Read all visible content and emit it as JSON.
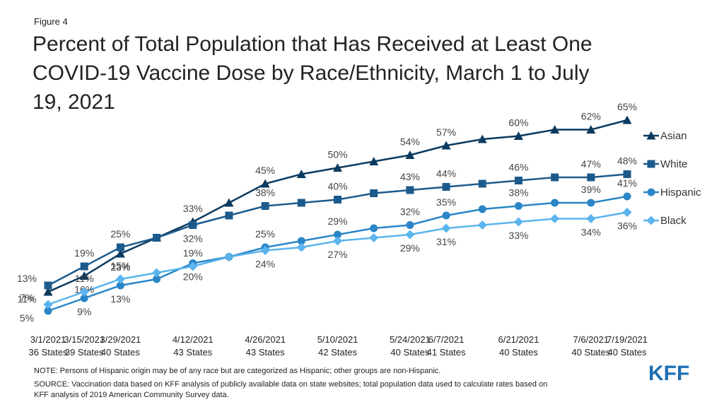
{
  "chart_data": {
    "type": "line",
    "figure_label": "Figure 4",
    "title": [
      "Percent of Total Population that Has Received at Least One",
      "COVID-19 Vaccine Dose by Race/Ethnicity, March 1 to July",
      "19, 2021"
    ],
    "categories": [
      "3/1/2021",
      "3/15/2021",
      "3/29/2021",
      null,
      "4/12/2021",
      null,
      "4/26/2021",
      null,
      "5/10/2021",
      null,
      "5/24/2021",
      "6/7/2021",
      null,
      "6/21/2021",
      null,
      "7/6/2021",
      "7/19/2021"
    ],
    "category_notes": [
      "36 States",
      "39 States",
      "40 States",
      null,
      "43 States",
      null,
      "43 States",
      null,
      "42 States",
      null,
      "40 States",
      "41 States",
      null,
      "40 States",
      null,
      "40 States",
      "40 States"
    ],
    "ylim": [
      0,
      70
    ],
    "series": [
      {
        "name": "Asian",
        "color": "#0b3a5f",
        "marker": "triangle",
        "values": [
          11,
          16,
          23,
          28,
          33,
          39,
          45,
          48,
          50,
          52,
          54,
          57,
          59,
          60,
          62,
          62,
          65
        ],
        "value_labels": [
          "11%",
          "16%",
          "23%",
          null,
          "33%",
          null,
          "45%",
          null,
          "50%",
          null,
          "54%",
          "57%",
          null,
          "60%",
          null,
          "62%",
          "65%"
        ]
      },
      {
        "name": "White",
        "color": "#1c5a8c",
        "marker": "square",
        "values": [
          13,
          19,
          25,
          28,
          32,
          35,
          38,
          39,
          40,
          42,
          43,
          44,
          45,
          46,
          47,
          47,
          48
        ],
        "value_labels": [
          "13%",
          "19%",
          "25%",
          null,
          "32%",
          null,
          "38%",
          null,
          "40%",
          null,
          "43%",
          "44%",
          null,
          "46%",
          null,
          "47%",
          "48%"
        ]
      },
      {
        "name": "Hispanic",
        "color": "#2a86c6",
        "marker": "circle",
        "values": [
          5,
          9,
          13,
          15,
          20,
          22,
          25,
          27,
          29,
          31,
          32,
          35,
          37,
          38,
          39,
          39,
          41
        ],
        "value_labels": [
          "5%",
          "9%",
          "13%",
          null,
          "20%",
          null,
          "25%",
          null,
          "29%",
          null,
          "32%",
          "35%",
          null,
          "38%",
          null,
          "39%",
          "41%"
        ]
      },
      {
        "name": "Black",
        "color": "#5ab4ee",
        "marker": "diamond",
        "values": [
          7,
          11,
          15,
          17,
          19,
          22,
          24,
          25,
          27,
          28,
          29,
          31,
          32,
          33,
          34,
          34,
          36
        ],
        "value_labels": [
          "7%",
          "11%",
          "15%",
          null,
          "19%",
          null,
          "24%",
          null,
          "27%",
          null,
          "29%",
          "31%",
          null,
          "33%",
          null,
          "34%",
          "36%"
        ]
      }
    ],
    "notes": [
      "NOTE: Persons of Hispanic origin may be of any race but are categorized as Hispanic; other groups are non-Hispanic.",
      "SOURCE: Vaccination data based on KFF analysis of publicly available data on state websites; total population data used to calculate rates based on",
      "KFF analysis of 2019 American Community Survey data."
    ],
    "logo": "KFF"
  }
}
